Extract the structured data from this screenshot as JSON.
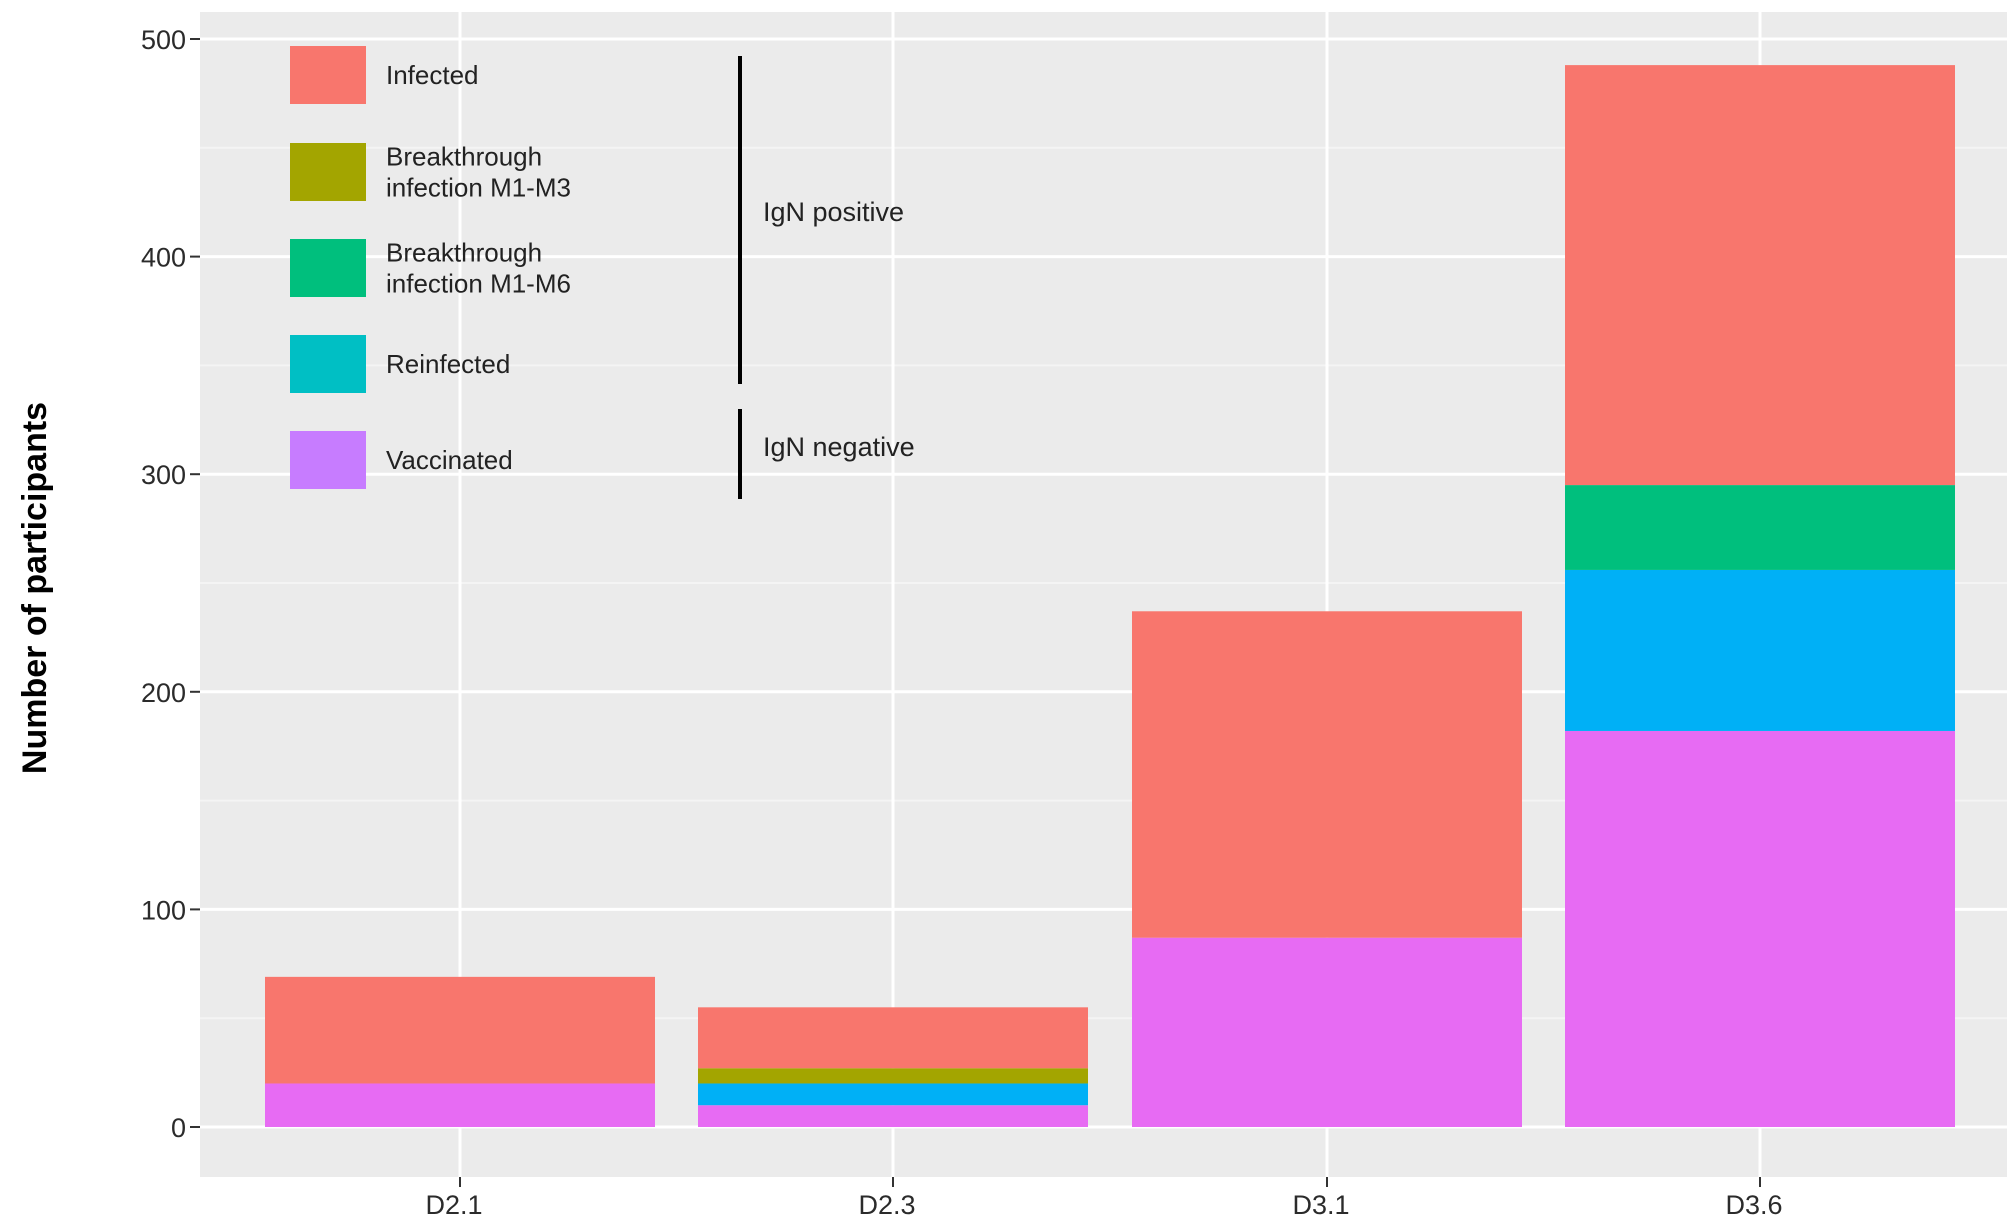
{
  "chart_data": {
    "type": "bar",
    "stacked": true,
    "categories": [
      "D2.1",
      "D2.3",
      "D3.1",
      "D3.6"
    ],
    "ylabel": "Number of participants",
    "ylim": [
      0,
      500
    ],
    "yticks": [
      0,
      100,
      200,
      300,
      400,
      500
    ],
    "grid": true,
    "legend_position": "top-left (inside plot)",
    "series": [
      {
        "name": "Vaccinated",
        "color": "#E76BF3",
        "values": [
          20,
          10,
          87,
          182
        ]
      },
      {
        "name": "Reinfected",
        "color": "#00B0F6",
        "values": [
          0,
          10,
          0,
          74
        ]
      },
      {
        "name": "Breakthrough infection M1-M6",
        "color": "#00BF7D",
        "values": [
          0,
          0,
          0,
          39
        ]
      },
      {
        "name": "Breakthrough infection M1-M3",
        "color": "#A3A500",
        "values": [
          0,
          7,
          0,
          0
        ]
      },
      {
        "name": "Infected",
        "color": "#F8766D",
        "values": [
          49,
          28,
          150,
          193
        ]
      }
    ],
    "legend": {
      "entries": [
        {
          "lines": [
            "Infected"
          ],
          "color": "#F8766D"
        },
        {
          "lines": [
            "Breakthrough",
            "infection M1-M3"
          ],
          "color": "#A3A500"
        },
        {
          "lines": [
            "Breakthrough",
            "infection M1-M6"
          ],
          "color": "#00BF7D"
        },
        {
          "lines": [
            "Reinfected"
          ],
          "color": "#00BFC4"
        },
        {
          "lines": [
            "Vaccinated"
          ],
          "color": "#C77CFF"
        }
      ],
      "groups": [
        {
          "label": "IgN positive"
        },
        {
          "label": "IgN negative"
        }
      ]
    },
    "colors": {
      "panel_background": "#EBEBEB",
      "grid_major": "#FFFFFF",
      "grid_minor": "#F4F4F4",
      "tick_mark": "#333333"
    }
  }
}
